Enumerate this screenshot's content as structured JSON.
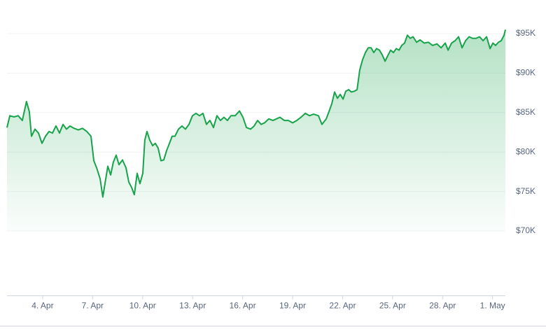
{
  "chart_data": {
    "type": "line",
    "color": "#16a34a",
    "grid": true,
    "xlim": [
      1.86,
      31.77
    ],
    "ylim": [
      61800,
      98500
    ],
    "xticks": [
      {
        "value": 4,
        "label": "4. Apr"
      },
      {
        "value": 7,
        "label": "7. Apr"
      },
      {
        "value": 10,
        "label": "10. Apr"
      },
      {
        "value": 13,
        "label": "13. Apr"
      },
      {
        "value": 16,
        "label": "16. Apr"
      },
      {
        "value": 19,
        "label": "19. Apr"
      },
      {
        "value": 22,
        "label": "22. Apr"
      },
      {
        "value": 25,
        "label": "25. Apr"
      },
      {
        "value": 28,
        "label": "28. Apr"
      },
      {
        "value": 31,
        "label": "1. May"
      }
    ],
    "yticks": [
      {
        "value": 70000,
        "label": "$70K"
      },
      {
        "value": 75000,
        "label": "$75K"
      },
      {
        "value": 80000,
        "label": "$80K"
      },
      {
        "value": 85000,
        "label": "$85K"
      },
      {
        "value": 90000,
        "label": "$90K"
      },
      {
        "value": 95000,
        "label": "$95K"
      }
    ],
    "x": [
      1.86,
      2.03,
      2.28,
      2.53,
      2.78,
      3.03,
      3.2,
      3.33,
      3.54,
      3.75,
      3.96,
      4.17,
      4.38,
      4.59,
      4.8,
      5.01,
      5.22,
      5.43,
      5.64,
      5.89,
      6.14,
      6.39,
      6.65,
      6.9,
      7.07,
      7.24,
      7.45,
      7.61,
      7.74,
      7.91,
      8.08,
      8.24,
      8.41,
      8.58,
      8.79,
      9.0,
      9.17,
      9.34,
      9.5,
      9.67,
      9.84,
      10.01,
      10.13,
      10.26,
      10.43,
      10.6,
      10.76,
      10.93,
      11.1,
      11.27,
      11.44,
      11.61,
      11.77,
      11.94,
      12.15,
      12.36,
      12.57,
      12.78,
      12.99,
      13.2,
      13.41,
      13.62,
      13.83,
      14.04,
      14.25,
      14.46,
      14.67,
      14.88,
      15.09,
      15.3,
      15.55,
      15.81,
      16.02,
      16.23,
      16.48,
      16.69,
      16.9,
      17.11,
      17.32,
      17.57,
      17.82,
      18.03,
      18.24,
      18.5,
      18.75,
      19.0,
      19.25,
      19.5,
      19.76,
      20.01,
      20.26,
      20.55,
      20.76,
      21.02,
      21.18,
      21.35,
      21.52,
      21.69,
      21.86,
      22.03,
      22.19,
      22.36,
      22.53,
      22.7,
      22.87,
      23.03,
      23.2,
      23.37,
      23.54,
      23.71,
      23.87,
      24.04,
      24.21,
      24.38,
      24.55,
      24.71,
      24.88,
      25.05,
      25.22,
      25.39,
      25.55,
      25.72,
      25.89,
      26.06,
      26.23,
      26.44,
      26.65,
      26.9,
      27.15,
      27.4,
      27.66,
      27.91,
      28.16,
      28.33,
      28.54,
      28.75,
      28.96,
      29.17,
      29.38,
      29.59,
      29.8,
      30.01,
      30.22,
      30.43,
      30.64,
      30.85,
      31.02,
      31.18,
      31.35,
      31.52,
      31.69,
      31.77
    ],
    "values": [
      83100,
      84600,
      84450,
      84600,
      84000,
      86400,
      85100,
      82000,
      82900,
      82400,
      81100,
      82000,
      82600,
      82400,
      83300,
      82400,
      83500,
      82900,
      83300,
      83000,
      82800,
      83000,
      82600,
      82000,
      78900,
      78000,
      76600,
      74300,
      76000,
      78200,
      77100,
      78700,
      79600,
      78400,
      79000,
      78000,
      76200,
      75500,
      74600,
      77300,
      76000,
      77300,
      81500,
      82600,
      81500,
      80800,
      81100,
      80500,
      78900,
      79000,
      80200,
      81100,
      82000,
      82000,
      82900,
      83300,
      82900,
      83500,
      84600,
      84900,
      84600,
      84900,
      83500,
      84000,
      83100,
      84600,
      84000,
      84400,
      84000,
      84600,
      84600,
      85200,
      84400,
      83100,
      82900,
      83300,
      84000,
      83500,
      83700,
      84200,
      84000,
      84200,
      84400,
      84000,
      84000,
      83700,
      84000,
      84400,
      84900,
      84600,
      84800,
      84600,
      83500,
      84200,
      85100,
      86100,
      87600,
      86800,
      87300,
      86700,
      87700,
      87900,
      87600,
      87700,
      87900,
      90400,
      91700,
      92600,
      93200,
      93200,
      92600,
      93100,
      92900,
      92300,
      91500,
      92200,
      92900,
      92600,
      93100,
      92900,
      93500,
      93800,
      94800,
      94400,
      94600,
      93900,
      94200,
      93800,
      93900,
      93500,
      93700,
      93200,
      93800,
      92900,
      93800,
      94100,
      94600,
      93200,
      94100,
      94600,
      94400,
      94400,
      94600,
      94100,
      94600,
      93100,
      93800,
      93500,
      93900,
      94100,
      94800,
      95500
    ]
  }
}
